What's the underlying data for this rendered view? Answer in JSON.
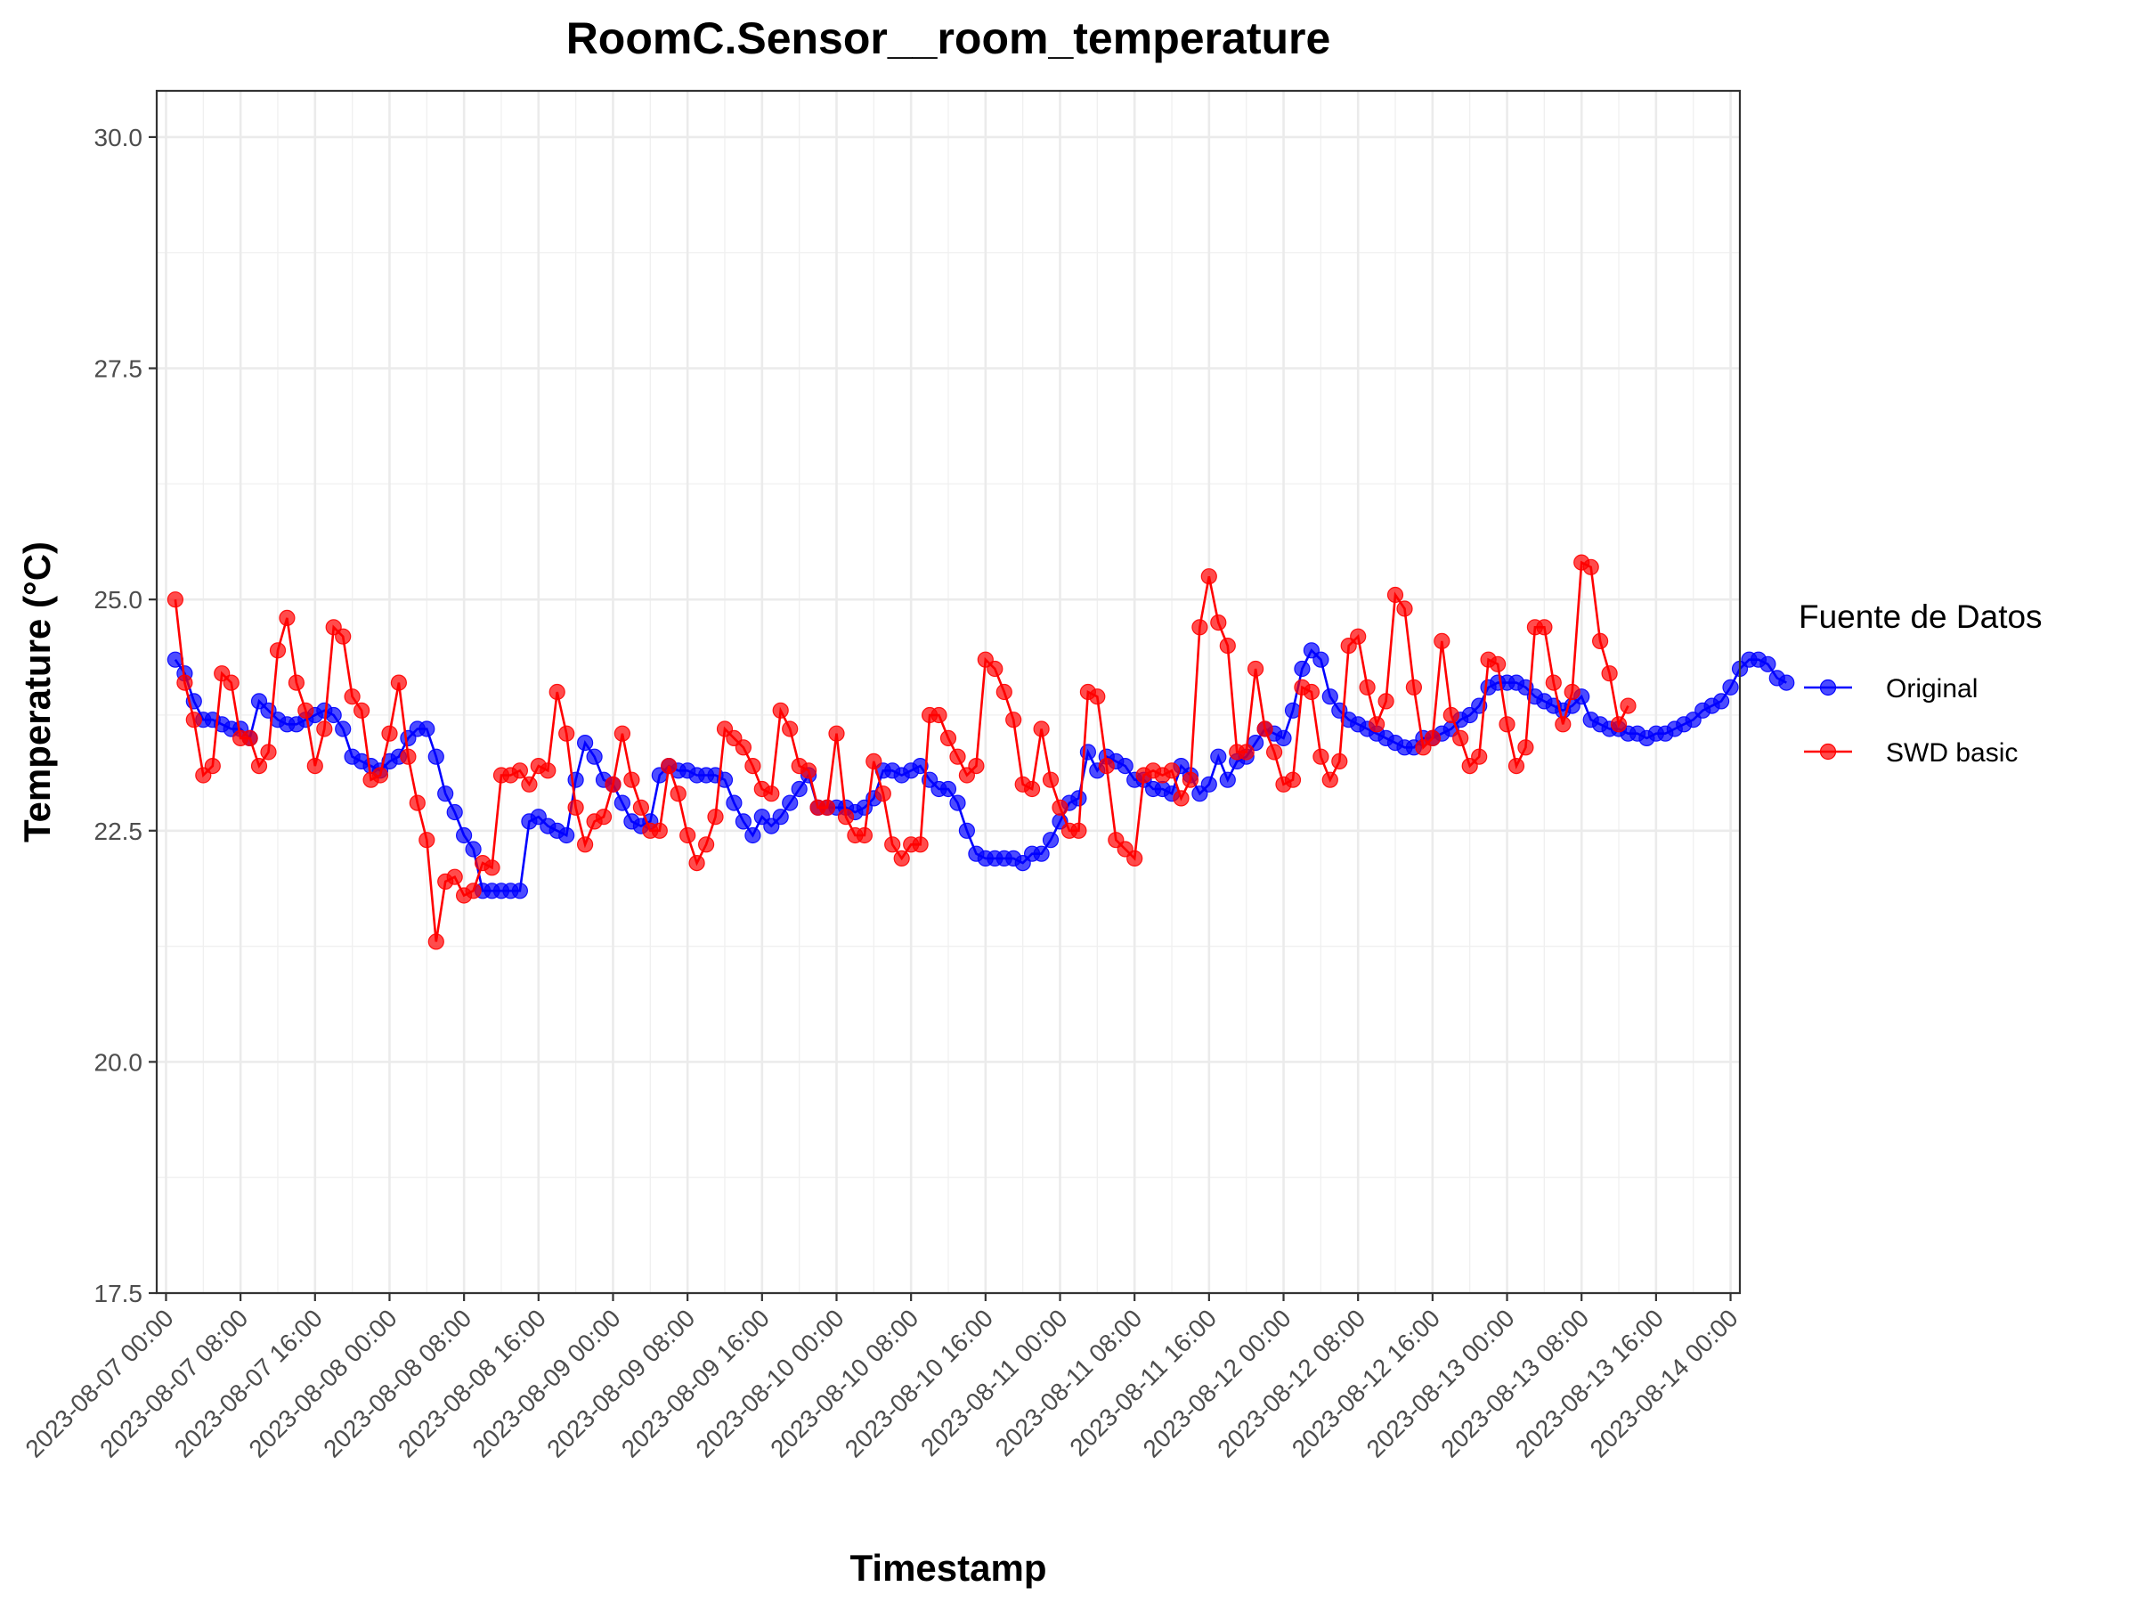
{
  "chart_data": {
    "type": "line",
    "title": "RoomC.Sensor__room_temperature",
    "xlabel": "Timestamp",
    "ylabel": "Temperature (°C)",
    "x_range": [
      "2023-08-06 23:00",
      "2023-08-14 01:00"
    ],
    "ylim": [
      17.5,
      30.5
    ],
    "y_ticks": [
      "17.5",
      "20.0",
      "22.5",
      "25.0",
      "27.5",
      "30.0"
    ],
    "x_ticks": [
      "2023-08-07 00:00",
      "2023-08-07 08:00",
      "2023-08-07 16:00",
      "2023-08-08 00:00",
      "2023-08-08 08:00",
      "2023-08-08 16:00",
      "2023-08-09 00:00",
      "2023-08-09 08:00",
      "2023-08-09 16:00",
      "2023-08-10 00:00",
      "2023-08-10 08:00",
      "2023-08-10 16:00",
      "2023-08-11 00:00",
      "2023-08-11 08:00",
      "2023-08-11 16:00",
      "2023-08-12 00:00",
      "2023-08-12 08:00",
      "2023-08-12 16:00",
      "2023-08-13 00:00",
      "2023-08-13 08:00",
      "2023-08-13 16:00",
      "2023-08-14 00:00"
    ],
    "grid": true,
    "legend": {
      "title": "Fuente de Datos",
      "position": "right"
    },
    "x_start": "2023-08-07 01:00",
    "x_step_hours": 1,
    "series": [
      {
        "name": "Original",
        "color": "#0000ff",
        "values": [
          24.35,
          24.2,
          23.9,
          23.7,
          23.7,
          23.65,
          23.6,
          23.6,
          23.5,
          23.9,
          23.8,
          23.7,
          23.65,
          23.65,
          23.7,
          23.75,
          23.8,
          23.75,
          23.6,
          23.3,
          23.25,
          23.2,
          23.15,
          23.25,
          23.3,
          23.5,
          23.6,
          23.6,
          23.3,
          22.9,
          22.7,
          22.45,
          22.3,
          21.85,
          21.85,
          21.85,
          21.85,
          21.85,
          22.6,
          22.65,
          22.55,
          22.5,
          22.45,
          23.05,
          23.45,
          23.3,
          23.05,
          23.0,
          22.8,
          22.6,
          22.55,
          22.6,
          23.1,
          23.2,
          23.15,
          23.15,
          23.1,
          23.1,
          23.1,
          23.05,
          22.8,
          22.6,
          22.45,
          22.65,
          22.55,
          22.65,
          22.8,
          22.95,
          23.1,
          22.75,
          22.75,
          22.75,
          22.75,
          22.7,
          22.75,
          22.85,
          23.15,
          23.15,
          23.1,
          23.15,
          23.2,
          23.05,
          22.95,
          22.95,
          22.8,
          22.5,
          22.25,
          22.2,
          22.2,
          22.2,
          22.2,
          22.15,
          22.25,
          22.25,
          22.4,
          22.6,
          22.8,
          22.85,
          23.35,
          23.15,
          23.3,
          23.25,
          23.2,
          23.05,
          23.05,
          22.95,
          22.95,
          22.9,
          23.2,
          23.1,
          22.9,
          23.0,
          23.3,
          23.05,
          23.25,
          23.3,
          23.45,
          23.6,
          23.55,
          23.5,
          23.8,
          24.25,
          24.45,
          24.35,
          23.95,
          23.8,
          23.7,
          23.65,
          23.6,
          23.55,
          23.5,
          23.45,
          23.4,
          23.4,
          23.5,
          23.5,
          23.55,
          23.6,
          23.7,
          23.75,
          23.85,
          24.05,
          24.1,
          24.1,
          24.1,
          24.05,
          23.95,
          23.9,
          23.85,
          23.8,
          23.85,
          23.95,
          23.7,
          23.65,
          23.6,
          23.6,
          23.55,
          23.55,
          23.5,
          23.55,
          23.55,
          23.6,
          23.65,
          23.7,
          23.8,
          23.85,
          23.9,
          24.05,
          24.25,
          24.35,
          24.35,
          24.3,
          24.15,
          24.1
        ]
      },
      {
        "name": "SWD basic",
        "color": "#ff0000",
        "values": [
          25.0,
          24.1,
          23.7,
          23.1,
          23.2,
          24.2,
          24.1,
          23.5,
          23.5,
          23.2,
          23.35,
          24.45,
          24.8,
          24.1,
          23.8,
          23.2,
          23.6,
          24.7,
          24.6,
          23.95,
          23.8,
          23.05,
          23.1,
          23.55,
          24.1,
          23.3,
          22.8,
          22.4,
          21.3,
          21.95,
          22.0,
          21.8,
          21.85,
          22.15,
          22.1,
          23.1,
          23.1,
          23.15,
          23.0,
          23.2,
          23.15,
          24.0,
          23.55,
          22.75,
          22.35,
          22.6,
          22.65,
          23.0,
          23.55,
          23.05,
          22.75,
          22.5,
          22.5,
          23.2,
          22.9,
          22.45,
          22.15,
          22.35,
          22.65,
          23.6,
          23.5,
          23.4,
          23.2,
          22.95,
          22.9,
          23.8,
          23.6,
          23.2,
          23.15,
          22.75,
          22.75,
          23.55,
          22.65,
          22.45,
          22.45,
          23.25,
          22.9,
          22.35,
          22.2,
          22.35,
          22.35,
          23.75,
          23.75,
          23.5,
          23.3,
          23.1,
          23.2,
          24.35,
          24.25,
          24.0,
          23.7,
          23.0,
          22.95,
          23.6,
          23.05,
          22.75,
          22.5,
          22.5,
          24.0,
          23.95,
          23.2,
          22.4,
          22.3,
          22.2,
          23.1,
          23.15,
          23.1,
          23.15,
          22.85,
          23.05,
          24.7,
          25.25,
          24.75,
          24.5,
          23.35,
          23.35,
          24.25,
          23.6,
          23.35,
          23.0,
          23.05,
          24.05,
          24.0,
          23.3,
          23.05,
          23.25,
          24.5,
          24.6,
          24.05,
          23.65,
          23.9,
          25.05,
          24.9,
          24.05,
          23.4,
          23.5,
          24.55,
          23.75,
          23.5,
          23.2,
          23.3,
          24.35,
          24.3,
          23.65,
          23.2,
          23.4,
          24.7,
          24.7,
          24.1,
          23.65,
          24.0,
          25.4,
          25.35,
          24.55,
          24.2,
          23.65,
          23.85
        ]
      }
    ]
  }
}
